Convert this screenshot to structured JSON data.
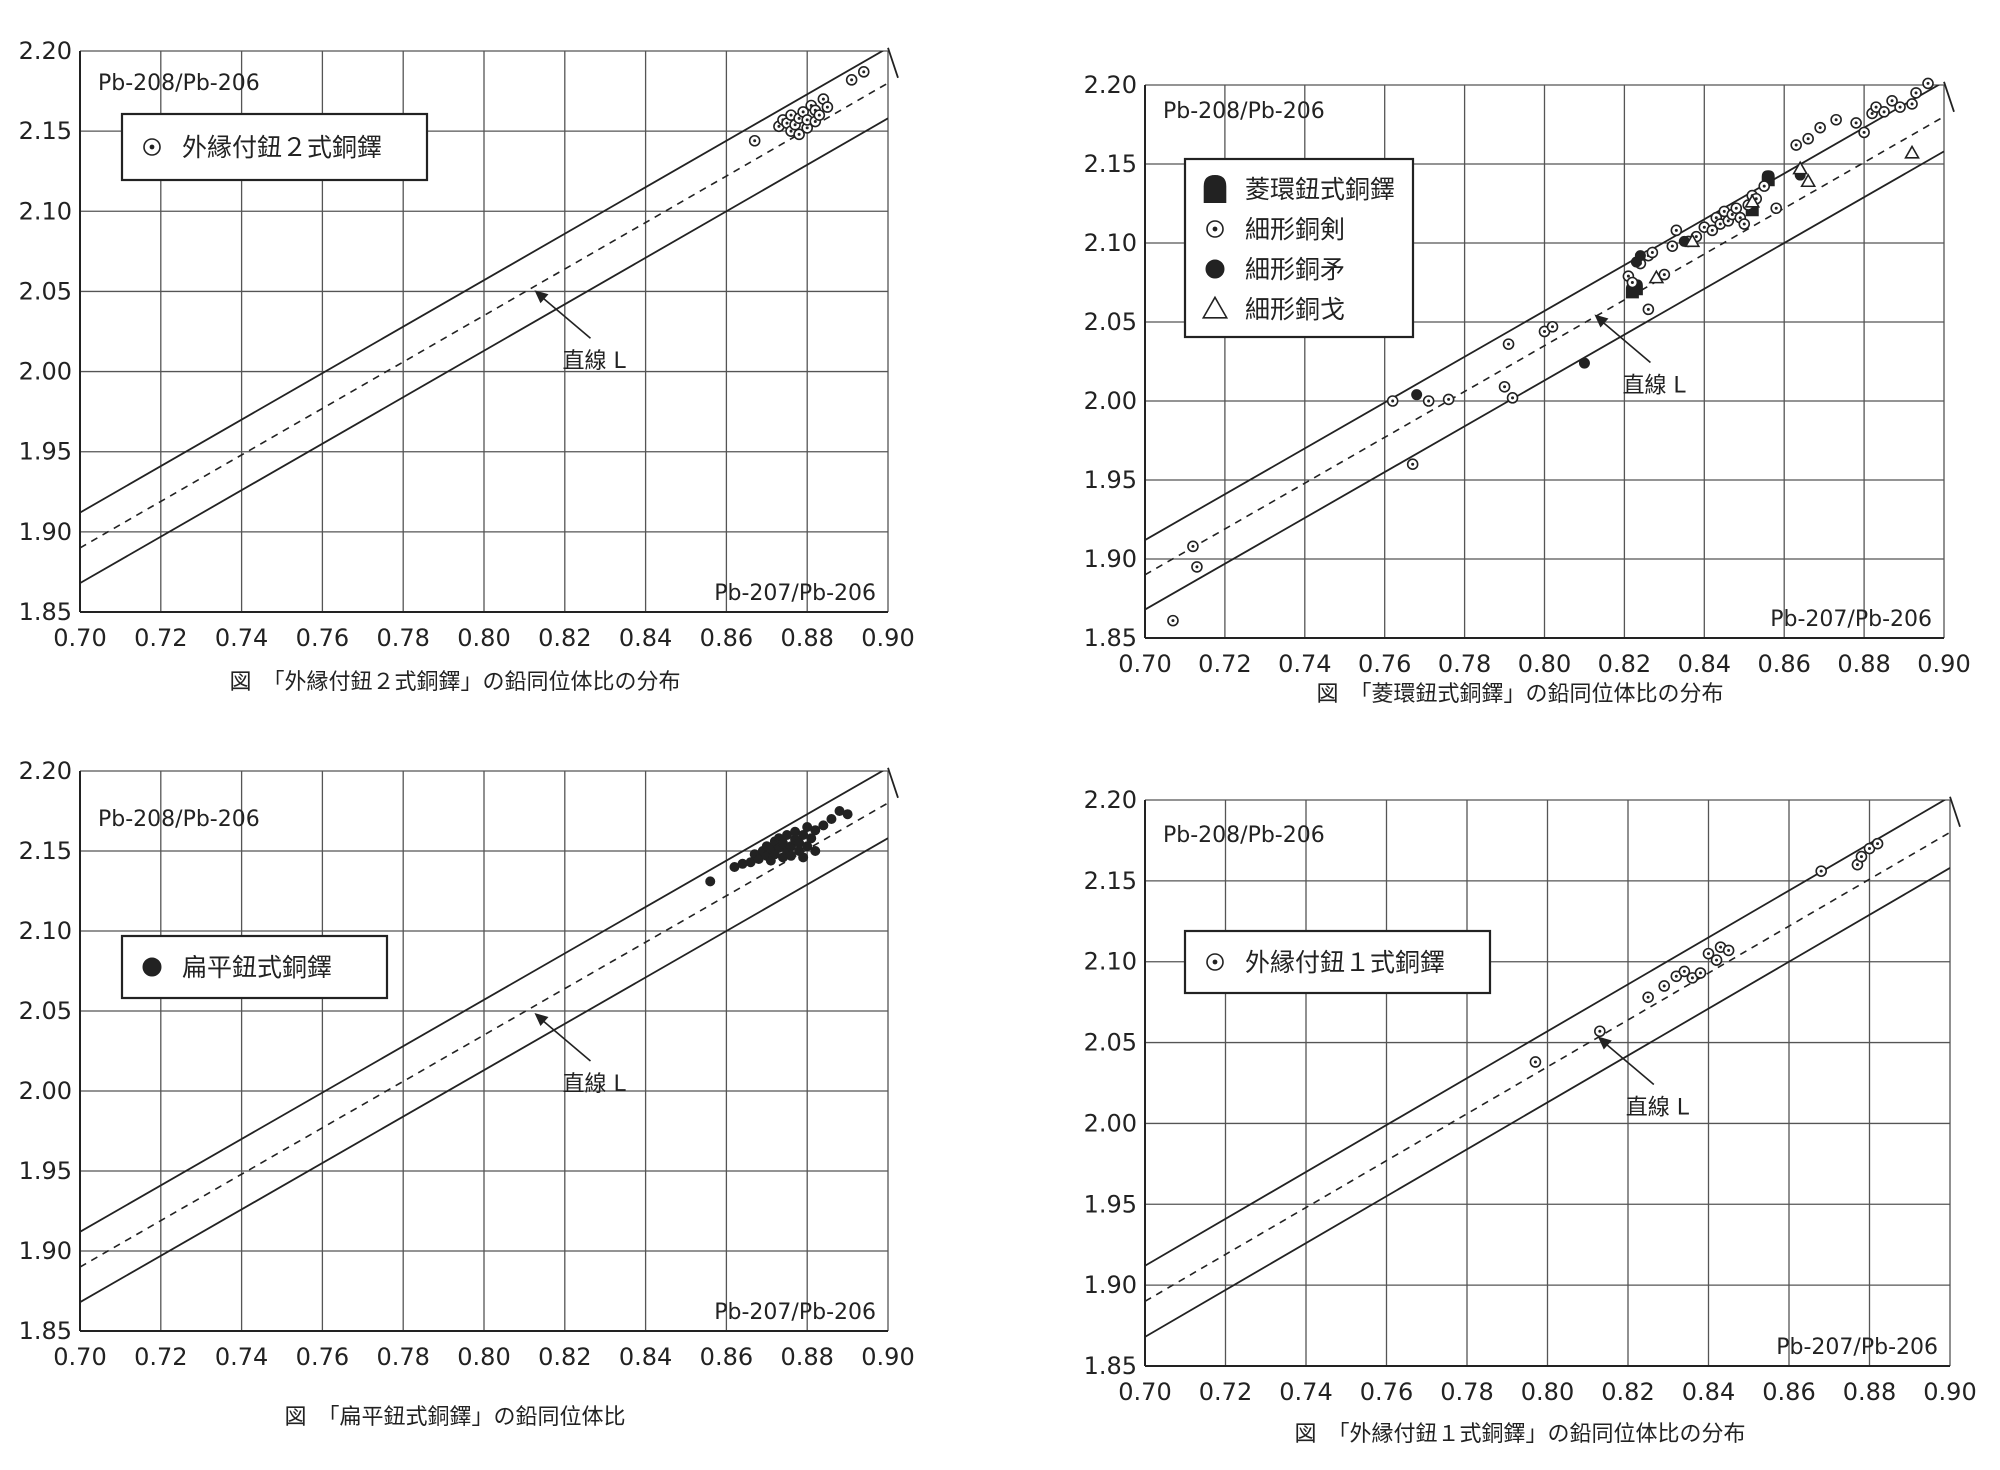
{
  "chart_data": [
    {
      "type": "scatter",
      "xlabel": "Pb-207/Pb-206",
      "ylabel": "Pb-208/Pb-206",
      "xlim": [
        0.7,
        0.9
      ],
      "ylim": [
        1.85,
        2.2
      ],
      "xticks": [
        "0.70",
        "0.72",
        "0.74",
        "0.76",
        "0.78",
        "0.80",
        "0.82",
        "0.84",
        "0.86",
        "0.88",
        "0.90"
      ],
      "yticks": [
        "1.85",
        "1.90",
        "1.95",
        "2.00",
        "2.05",
        "2.10",
        "2.15",
        "2.20"
      ],
      "grid": true,
      "legend_position": "top-left",
      "caption": "図　「外縁付鈕２式銅鐸」の鉛同位体比の分布",
      "line_label": "直線 L",
      "line_label_at": [
        0.812,
        2.052
      ],
      "line_L": [
        [
          0.7,
          1.89
        ],
        [
          0.9,
          2.18
        ]
      ],
      "band_upper": [
        [
          0.7,
          1.912
        ],
        [
          0.9,
          2.202
        ]
      ],
      "band_lower": [
        [
          0.7,
          1.868
        ],
        [
          0.9,
          2.158
        ]
      ],
      "series": [
        {
          "name": "外縁付鈕２式銅鐸",
          "marker": "dot-circle",
          "points": [
            [
              0.867,
              2.144
            ],
            [
              0.873,
              2.153
            ],
            [
              0.874,
              2.157
            ],
            [
              0.875,
              2.155
            ],
            [
              0.876,
              2.16
            ],
            [
              0.876,
              2.15
            ],
            [
              0.877,
              2.154
            ],
            [
              0.878,
              2.158
            ],
            [
              0.878,
              2.148
            ],
            [
              0.879,
              2.162
            ],
            [
              0.88,
              2.152
            ],
            [
              0.88,
              2.157
            ],
            [
              0.881,
              2.166
            ],
            [
              0.882,
              2.156
            ],
            [
              0.882,
              2.163
            ],
            [
              0.883,
              2.16
            ],
            [
              0.884,
              2.17
            ],
            [
              0.885,
              2.165
            ],
            [
              0.891,
              2.182
            ],
            [
              0.894,
              2.187
            ]
          ]
        }
      ]
    },
    {
      "type": "scatter",
      "xlabel": "Pb-207/Pb-206",
      "ylabel": "Pb-208/Pb-206",
      "xlim": [
        0.7,
        0.9
      ],
      "ylim": [
        1.85,
        2.2
      ],
      "xticks": [
        "0.70",
        "0.72",
        "0.74",
        "0.76",
        "0.78",
        "0.80",
        "0.82",
        "0.84",
        "0.86",
        "0.88",
        "0.90"
      ],
      "yticks": [
        "1.85",
        "1.90",
        "1.95",
        "2.00",
        "2.05",
        "2.10",
        "2.15",
        "2.20"
      ],
      "grid": true,
      "legend_position": "top-left",
      "caption": "図　「菱環鈕式銅鐸」の鉛同位体比の分布",
      "line_label": "直線 L",
      "line_label_at": [
        0.812,
        2.056
      ],
      "line_L": [
        [
          0.7,
          1.89
        ],
        [
          0.9,
          2.18
        ]
      ],
      "band_upper": [
        [
          0.7,
          1.912
        ],
        [
          0.9,
          2.202
        ]
      ],
      "band_lower": [
        [
          0.7,
          1.868
        ],
        [
          0.9,
          2.158
        ]
      ],
      "series": [
        {
          "name": "菱環鈕式銅鐸",
          "marker": "bell",
          "points": [
            [
              0.822,
              2.07
            ],
            [
              0.823,
              2.072
            ],
            [
              0.852,
              2.122
            ],
            [
              0.856,
              2.141
            ]
          ]
        },
        {
          "name": "細形銅剣",
          "marker": "dot-circle",
          "points": [
            [
              0.707,
              1.861
            ],
            [
              0.712,
              1.908
            ],
            [
              0.713,
              1.895
            ],
            [
              0.762,
              2.0
            ],
            [
              0.767,
              1.96
            ],
            [
              0.771,
              2.0
            ],
            [
              0.776,
              2.001
            ],
            [
              0.79,
              2.009
            ],
            [
              0.791,
              2.036
            ],
            [
              0.792,
              2.002
            ],
            [
              0.8,
              2.044
            ],
            [
              0.802,
              2.047
            ],
            [
              0.821,
              2.079
            ],
            [
              0.822,
              2.075
            ],
            [
              0.824,
              2.087
            ],
            [
              0.826,
              2.058
            ],
            [
              0.826,
              2.092
            ],
            [
              0.827,
              2.094
            ],
            [
              0.83,
              2.08
            ],
            [
              0.832,
              2.098
            ],
            [
              0.833,
              2.108
            ],
            [
              0.836,
              2.101
            ],
            [
              0.838,
              2.104
            ],
            [
              0.84,
              2.11
            ],
            [
              0.842,
              2.108
            ],
            [
              0.843,
              2.116
            ],
            [
              0.844,
              2.112
            ],
            [
              0.845,
              2.12
            ],
            [
              0.846,
              2.114
            ],
            [
              0.847,
              2.118
            ],
            [
              0.848,
              2.122
            ],
            [
              0.849,
              2.116
            ],
            [
              0.85,
              2.112
            ],
            [
              0.851,
              2.124
            ],
            [
              0.852,
              2.13
            ],
            [
              0.853,
              2.128
            ],
            [
              0.855,
              2.136
            ],
            [
              0.858,
              2.122
            ],
            [
              0.863,
              2.162
            ],
            [
              0.866,
              2.166
            ],
            [
              0.869,
              2.173
            ],
            [
              0.873,
              2.178
            ],
            [
              0.878,
              2.176
            ],
            [
              0.88,
              2.17
            ],
            [
              0.882,
              2.182
            ],
            [
              0.883,
              2.186
            ],
            [
              0.885,
              2.183
            ],
            [
              0.887,
              2.19
            ],
            [
              0.889,
              2.186
            ],
            [
              0.892,
              2.188
            ],
            [
              0.893,
              2.195
            ],
            [
              0.896,
              2.201
            ]
          ]
        },
        {
          "name": "細形銅矛",
          "marker": "filled-circle",
          "points": [
            [
              0.768,
              2.004
            ],
            [
              0.81,
              2.024
            ],
            [
              0.823,
              2.088
            ],
            [
              0.824,
              2.092
            ],
            [
              0.835,
              2.101
            ],
            [
              0.864,
              2.143
            ]
          ]
        },
        {
          "name": "細形銅戈",
          "marker": "triangle",
          "points": [
            [
              0.828,
              2.078
            ],
            [
              0.837,
              2.101
            ],
            [
              0.852,
              2.126
            ],
            [
              0.864,
              2.147
            ],
            [
              0.866,
              2.139
            ],
            [
              0.892,
              2.157
            ]
          ]
        }
      ]
    },
    {
      "type": "scatter",
      "xlabel": "Pb-207/Pb-206",
      "ylabel": "Pb-208/Pb-206",
      "xlim": [
        0.7,
        0.9
      ],
      "ylim": [
        1.85,
        2.2
      ],
      "xticks": [
        "0.70",
        "0.72",
        "0.74",
        "0.76",
        "0.78",
        "0.80",
        "0.82",
        "0.84",
        "0.86",
        "0.88",
        "0.90"
      ],
      "yticks": [
        "1.85",
        "1.90",
        "1.95",
        "2.00",
        "2.05",
        "2.10",
        "2.15",
        "2.20"
      ],
      "grid": true,
      "legend_position": "center-left",
      "caption": "図　「扁平鈕式銅鐸」の鉛同位体比",
      "line_label": "直線 L",
      "line_label_at": [
        0.812,
        2.05
      ],
      "line_L": [
        [
          0.7,
          1.89
        ],
        [
          0.9,
          2.18
        ]
      ],
      "band_upper": [
        [
          0.7,
          1.912
        ],
        [
          0.9,
          2.202
        ]
      ],
      "band_lower": [
        [
          0.7,
          1.868
        ],
        [
          0.9,
          2.158
        ]
      ],
      "series": [
        {
          "name": "扁平鈕式銅鐸",
          "marker": "filled-circle",
          "points": [
            [
              0.856,
              2.131
            ],
            [
              0.862,
              2.14
            ],
            [
              0.864,
              2.142
            ],
            [
              0.866,
              2.143
            ],
            [
              0.867,
              2.148
            ],
            [
              0.868,
              2.145
            ],
            [
              0.869,
              2.15
            ],
            [
              0.87,
              2.147
            ],
            [
              0.87,
              2.153
            ],
            [
              0.871,
              2.144
            ],
            [
              0.871,
              2.151
            ],
            [
              0.872,
              2.156
            ],
            [
              0.872,
              2.148
            ],
            [
              0.873,
              2.152
            ],
            [
              0.873,
              2.158
            ],
            [
              0.874,
              2.146
            ],
            [
              0.874,
              2.155
            ],
            [
              0.875,
              2.15
            ],
            [
              0.875,
              2.16
            ],
            [
              0.876,
              2.153
            ],
            [
              0.876,
              2.147
            ],
            [
              0.877,
              2.157
            ],
            [
              0.877,
              2.162
            ],
            [
              0.878,
              2.15
            ],
            [
              0.878,
              2.155
            ],
            [
              0.879,
              2.16
            ],
            [
              0.879,
              2.146
            ],
            [
              0.88,
              2.153
            ],
            [
              0.88,
              2.165
            ],
            [
              0.881,
              2.158
            ],
            [
              0.882,
              2.163
            ],
            [
              0.882,
              2.15
            ],
            [
              0.884,
              2.166
            ],
            [
              0.886,
              2.17
            ],
            [
              0.888,
              2.175
            ],
            [
              0.89,
              2.173
            ]
          ]
        }
      ]
    },
    {
      "type": "scatter",
      "xlabel": "Pb-207/Pb-206",
      "ylabel": "Pb-208/Pb-206",
      "xlim": [
        0.7,
        0.9
      ],
      "ylim": [
        1.85,
        2.2
      ],
      "xticks": [
        "0.70",
        "0.72",
        "0.74",
        "0.76",
        "0.78",
        "0.80",
        "0.82",
        "0.84",
        "0.86",
        "0.88",
        "0.90"
      ],
      "yticks": [
        "1.85",
        "1.90",
        "1.95",
        "2.00",
        "2.05",
        "2.10",
        "2.15",
        "2.20"
      ],
      "grid": true,
      "legend_position": "center-left",
      "caption": "図　「外縁付鈕１式銅鐸」の鉛同位体比の分布",
      "line_label": "直線 L",
      "line_label_at": [
        0.812,
        2.055
      ],
      "line_L": [
        [
          0.7,
          1.89
        ],
        [
          0.9,
          2.18
        ]
      ],
      "band_upper": [
        [
          0.7,
          1.912
        ],
        [
          0.9,
          2.202
        ]
      ],
      "band_lower": [
        [
          0.7,
          1.868
        ],
        [
          0.9,
          2.158
        ]
      ],
      "series": [
        {
          "name": "外縁付鈕１式銅鐸",
          "marker": "dot-circle",
          "points": [
            [
              0.797,
              2.038
            ],
            [
              0.813,
              2.057
            ],
            [
              0.825,
              2.078
            ],
            [
              0.829,
              2.085
            ],
            [
              0.832,
              2.091
            ],
            [
              0.834,
              2.094
            ],
            [
              0.836,
              2.09
            ],
            [
              0.838,
              2.093
            ],
            [
              0.84,
              2.105
            ],
            [
              0.842,
              2.101
            ],
            [
              0.843,
              2.109
            ],
            [
              0.845,
              2.107
            ],
            [
              0.868,
              2.156
            ],
            [
              0.877,
              2.16
            ],
            [
              0.878,
              2.165
            ],
            [
              0.88,
              2.17
            ],
            [
              0.882,
              2.173
            ]
          ]
        }
      ]
    }
  ]
}
